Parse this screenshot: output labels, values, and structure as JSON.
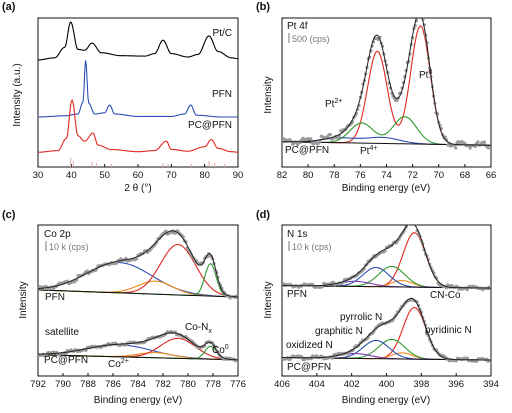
{
  "panels": {
    "a": {
      "label": "(a)",
      "ylabel": "Intensity (a.u.)",
      "xlabel": "2 θ (°)",
      "xticks": [
        "30",
        "40",
        "50",
        "60",
        "70",
        "80",
        "90"
      ],
      "traces": [
        {
          "name": "Pt/C",
          "color": "#000000"
        },
        {
          "name": "PFN",
          "color": "#2b4fb5"
        },
        {
          "name": "PC@PFN",
          "color": "#e0281e"
        }
      ]
    },
    "b": {
      "label": "(b)",
      "title": "Pt 4f",
      "scale": "500 (cps)",
      "ylabel": "Intensity",
      "xlabel": "Binding energy (eV)",
      "xticks": [
        "82",
        "80",
        "78",
        "76",
        "74",
        "72",
        "70",
        "68",
        "66"
      ],
      "sample": "PC@PFN",
      "annotations": [
        {
          "text": "Pt",
          "sup": "2+",
          "color": "#2e9a2e"
        },
        {
          "text": "Pt",
          "sup": "4+",
          "color": "#2b4fb5"
        },
        {
          "text": "Pt",
          "sup": "0",
          "color": "#e0281e"
        }
      ]
    },
    "c": {
      "label": "(c)",
      "title": "Co 2p",
      "scale": "10 k (cps)",
      "ylabel": "Intensity",
      "xlabel": "Binding energy (eV)",
      "xticks": [
        "792",
        "790",
        "788",
        "786",
        "784",
        "782",
        "780",
        "778",
        "776"
      ],
      "samples": [
        "PFN",
        "PC@PFN"
      ],
      "annotations": [
        {
          "text": "satellite",
          "sup": "",
          "sub": "",
          "color": "#2b4fb5"
        },
        {
          "text": "Co",
          "sup": "2+",
          "sub": "",
          "color": "#f08a1c"
        },
        {
          "text": "Co-N",
          "sup": "",
          "sub": "x",
          "color": "#e0281e"
        },
        {
          "text": "Co",
          "sup": "0",
          "sub": "",
          "color": "#2e9a2e"
        }
      ]
    },
    "d": {
      "label": "(d)",
      "title": "N 1s",
      "scale": "10 k (cps)",
      "ylabel": "Intensity",
      "xlabel": "Binding energy (eV)",
      "xticks": [
        "406",
        "404",
        "402",
        "400",
        "398",
        "396",
        "394"
      ],
      "samples": [
        "PFN",
        "PC@PFN"
      ],
      "annotations": [
        {
          "text": "CN-Co",
          "color": "#f08a1c"
        },
        {
          "text": "pyrrolic N",
          "color": "#2e9a2e"
        },
        {
          "text": "graphitic N",
          "color": "#2b4fb5"
        },
        {
          "text": "oxidized N",
          "color": "#7a3fb8"
        },
        {
          "text": "pyridinic N",
          "color": "#e0281e"
        }
      ]
    }
  },
  "chart_data": [
    {
      "type": "line",
      "panel": "a",
      "xlabel": "2 θ (°)",
      "ylabel": "Intensity (a.u.)",
      "xlim": [
        30,
        90
      ],
      "series": [
        {
          "name": "Pt/C",
          "x": [
            30,
            35,
            38,
            39.8,
            42,
            44,
            46.2,
            49,
            55,
            62,
            65,
            67.5,
            70,
            75,
            78,
            81.3,
            84,
            88,
            90
          ],
          "y": [
            0.05,
            0.1,
            0.35,
            0.95,
            0.3,
            0.28,
            0.45,
            0.22,
            0.15,
            0.14,
            0.2,
            0.52,
            0.2,
            0.12,
            0.18,
            0.62,
            0.25,
            0.1,
            0.08
          ]
        },
        {
          "name": "PFN",
          "x": [
            30,
            38,
            42,
            43.5,
            44.3,
            45.2,
            47,
            50,
            51.5,
            53,
            60,
            70,
            74,
            75.8,
            77.5,
            85,
            90
          ],
          "y": [
            0.05,
            0.07,
            0.1,
            0.3,
            1.0,
            0.28,
            0.1,
            0.12,
            0.25,
            0.1,
            0.06,
            0.06,
            0.1,
            0.25,
            0.08,
            0.05,
            0.05
          ]
        },
        {
          "name": "PC@PFN",
          "x": [
            30,
            36,
            38.5,
            40.2,
            42,
            44,
            46.5,
            48,
            52,
            60,
            65,
            68.5,
            70,
            75,
            80,
            82,
            84,
            88,
            90
          ],
          "y": [
            0.05,
            0.08,
            0.3,
            1.0,
            0.35,
            0.25,
            0.4,
            0.18,
            0.1,
            0.06,
            0.08,
            0.25,
            0.1,
            0.07,
            0.15,
            0.28,
            0.12,
            0.06,
            0.05
          ]
        }
      ]
    },
    {
      "type": "line",
      "panel": "b",
      "title": "Pt 4f",
      "xlabel": "Binding energy (eV)",
      "ylabel": "Intensity",
      "xlim": [
        82,
        66
      ],
      "series": [
        {
          "name": "Pt0",
          "peaks": [
            {
              "center": 71.4,
              "height": 1.0,
              "width": 0.75
            },
            {
              "center": 74.7,
              "height": 0.78,
              "width": 0.75
            }
          ]
        },
        {
          "name": "Pt2+",
          "peaks": [
            {
              "center": 72.6,
              "height": 0.23,
              "width": 0.9
            },
            {
              "center": 75.9,
              "height": 0.17,
              "width": 0.9
            }
          ]
        },
        {
          "name": "Pt4+",
          "peaks": [
            {
              "center": 74.3,
              "height": 0.05,
              "width": 1.3
            },
            {
              "center": 77.6,
              "height": 0.04,
              "width": 1.3
            }
          ]
        }
      ]
    },
    {
      "type": "line",
      "panel": "c",
      "title": "Co 2p",
      "xlabel": "Binding energy (eV)",
      "ylabel": "Intensity",
      "xlim": [
        792,
        776
      ],
      "series": [
        {
          "name": "satellite",
          "peaks": [
            {
              "center": 785.5,
              "height": 0.42,
              "width": 2.6
            }
          ]
        },
        {
          "name": "Co2+",
          "peaks": [
            {
              "center": 782.6,
              "height": 0.18,
              "width": 1.4
            }
          ]
        },
        {
          "name": "Co-Nx",
          "peaks": [
            {
              "center": 780.8,
              "height": 0.7,
              "width": 1.4
            }
          ]
        },
        {
          "name": "Co0",
          "peaks": [
            {
              "center": 778.2,
              "height": 0.45,
              "width": 0.45
            }
          ]
        }
      ]
    },
    {
      "type": "line",
      "panel": "d",
      "title": "N 1s",
      "xlabel": "Binding energy (eV)",
      "ylabel": "Intensity",
      "xlim": [
        406,
        394
      ],
      "series": [
        {
          "name": "pyridinic N",
          "peaks": [
            {
              "center": 398.4,
              "height": 0.85,
              "width": 0.65
            }
          ]
        },
        {
          "name": "CN-Co",
          "peaks": [
            {
              "center": 399.1,
              "height": 0.1,
              "width": 0.6
            }
          ]
        },
        {
          "name": "pyrrolic N",
          "peaks": [
            {
              "center": 399.7,
              "height": 0.32,
              "width": 0.75
            }
          ]
        },
        {
          "name": "graphitic N",
          "peaks": [
            {
              "center": 400.6,
              "height": 0.3,
              "width": 0.75
            }
          ]
        },
        {
          "name": "oxidized N",
          "peaks": [
            {
              "center": 401.8,
              "height": 0.08,
              "width": 0.9
            }
          ]
        }
      ]
    }
  ]
}
